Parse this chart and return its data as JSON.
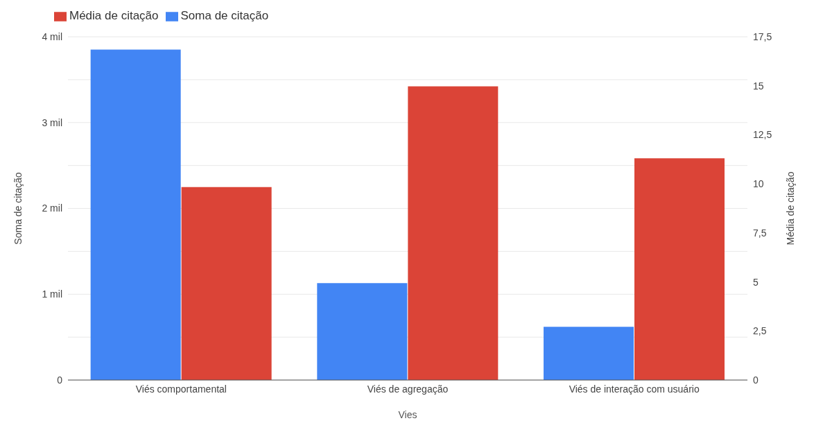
{
  "chart_data": {
    "type": "bar",
    "categories": [
      "Viés comportamental",
      "Viés de agregação",
      "Viés de interação com usuário"
    ],
    "series": [
      {
        "name": "Soma de citação",
        "color": "#4285f4",
        "values": [
          3.85,
          1.13,
          0.62
        ]
      },
      {
        "name": "Média de citação",
        "color": "#db4437",
        "values": [
          9.84,
          14.97,
          11.3
        ],
        "axis": "y2"
      }
    ],
    "xlabel": "Vies",
    "ylabel": "Soma de citação",
    "y2label": "Média de citação",
    "ylim": [
      0,
      4
    ],
    "yticks": [
      0,
      {
        "value": 0.5,
        "label": null
      },
      {
        "value": 1,
        "label": "1 mil"
      },
      {
        "value": 1.5,
        "label": null
      },
      {
        "value": 2,
        "label": "2 mil"
      },
      {
        "value": 2.5,
        "label": null
      },
      {
        "value": 3,
        "label": "3 mil"
      },
      {
        "value": 3.5,
        "label": null
      },
      {
        "value": 4,
        "label": "4 mil"
      }
    ],
    "y2lim": [
      0,
      17.5
    ],
    "y2ticks": [
      0,
      {
        "value": 2.5,
        "label": "2,5"
      },
      5,
      {
        "value": 7.5,
        "label": "7,5"
      },
      10,
      {
        "value": 12.5,
        "label": "12,5"
      },
      15,
      {
        "value": 17.5,
        "label": "17,5"
      }
    ],
    "grid": "y",
    "legend": "top left"
  }
}
